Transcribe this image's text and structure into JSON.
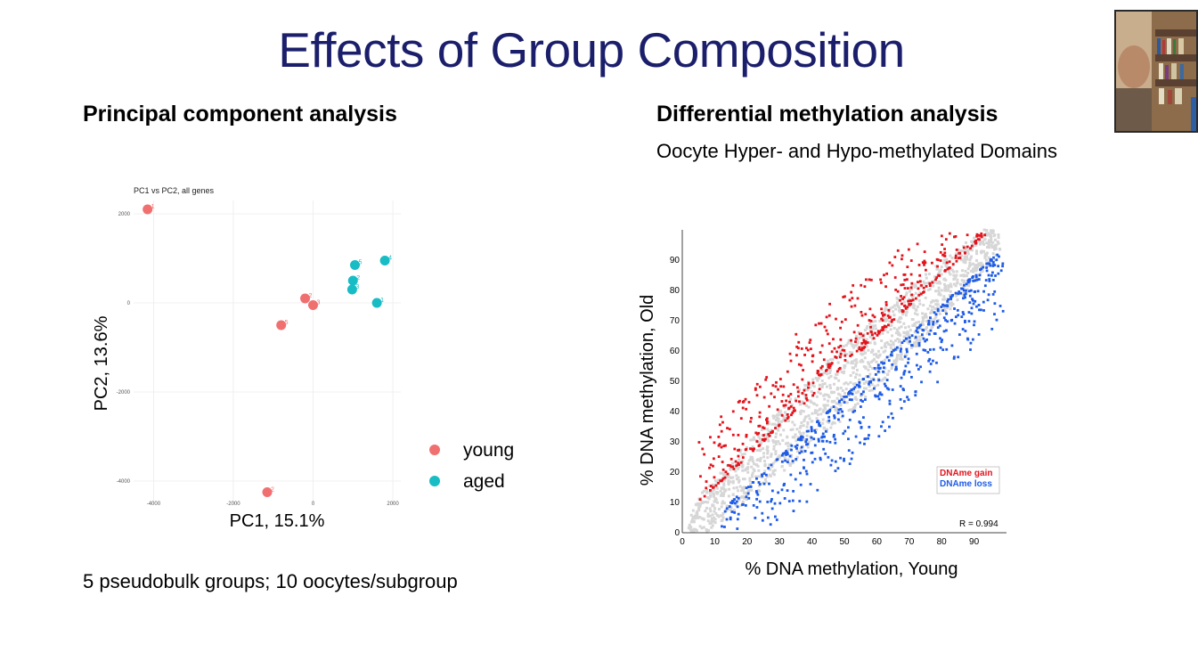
{
  "slide": {
    "title": "Effects of Group Composition",
    "footnote": "5 pseudobulk groups; 10 oocytes/subgroup"
  },
  "left_panel": {
    "heading": "Principal component analysis"
  },
  "right_panel": {
    "heading": "Differential methylation analysis",
    "subheading": "Oocyte Hyper- and Hypo-methylated Domains"
  },
  "colors": {
    "title": "#1b1f6b",
    "young": "#f07070",
    "aged": "#18bcc4",
    "gain": "#e3141c",
    "loss": "#1f5ce6",
    "neutral": "#d6d6d6"
  },
  "webcam": {
    "icon": "webcam-video-thumbnail"
  },
  "chart_data": [
    {
      "type": "scatter",
      "title": "PC1 vs PC2, all genes",
      "xlabel": "PC1, 15.1%",
      "ylabel": "PC2, 13.6%",
      "xlim": [
        -4500,
        2200
      ],
      "ylim": [
        -4500,
        2300
      ],
      "x_ticks": [
        -4000,
        -2000,
        0,
        2000
      ],
      "x_tick_labels": [
        "-4000",
        "-2000",
        "0",
        "2000"
      ],
      "y_ticks": [
        -4000,
        -2000,
        0,
        2000
      ],
      "y_tick_labels": [
        "-4000",
        "-2000",
        "0",
        "2000"
      ],
      "grid": true,
      "legend": "right",
      "series": [
        {
          "name": "young",
          "points": [
            {
              "x": -4150,
              "y": 2100,
              "label": "1"
            },
            {
              "x": -200,
              "y": 100,
              "label": "2"
            },
            {
              "x": 0,
              "y": -50,
              "label": "3"
            },
            {
              "x": -800,
              "y": -500,
              "label": "5"
            },
            {
              "x": -1150,
              "y": -4250,
              "label": "2"
            }
          ]
        },
        {
          "name": "aged",
          "points": [
            {
              "x": 1800,
              "y": 950,
              "label": "4"
            },
            {
              "x": 1050,
              "y": 850,
              "label": "5"
            },
            {
              "x": 1000,
              "y": 500,
              "label": "2"
            },
            {
              "x": 980,
              "y": 300,
              "label": "3"
            },
            {
              "x": 1600,
              "y": 0,
              "label": "1"
            }
          ]
        }
      ]
    },
    {
      "type": "scatter",
      "xlabel": "% DNA methylation, Young",
      "ylabel": "% DNA methylation, Old",
      "xlim": [
        0,
        100
      ],
      "ylim": [
        0,
        100
      ],
      "x_ticks": [
        0,
        10,
        20,
        30,
        40,
        50,
        60,
        70,
        80,
        90
      ],
      "x_tick_labels": [
        "0",
        "10",
        "20",
        "30",
        "40",
        "50",
        "60",
        "70",
        "80",
        "90"
      ],
      "y_ticks": [
        0,
        10,
        20,
        30,
        40,
        50,
        60,
        70,
        80,
        90
      ],
      "y_tick_labels": [
        "0",
        "10",
        "20",
        "30",
        "40",
        "50",
        "60",
        "70",
        "80",
        "90"
      ],
      "grid": false,
      "legend": "bottom-right",
      "annotation": "R = 0.994",
      "series": [
        {
          "name": "DNAme gain",
          "description": "points well above diagonal (Old > Young)"
        },
        {
          "name": "DNAme loss",
          "description": "points well below diagonal (Old < Young)"
        },
        {
          "description": "points near diagonal (no significant change)"
        }
      ]
    }
  ]
}
